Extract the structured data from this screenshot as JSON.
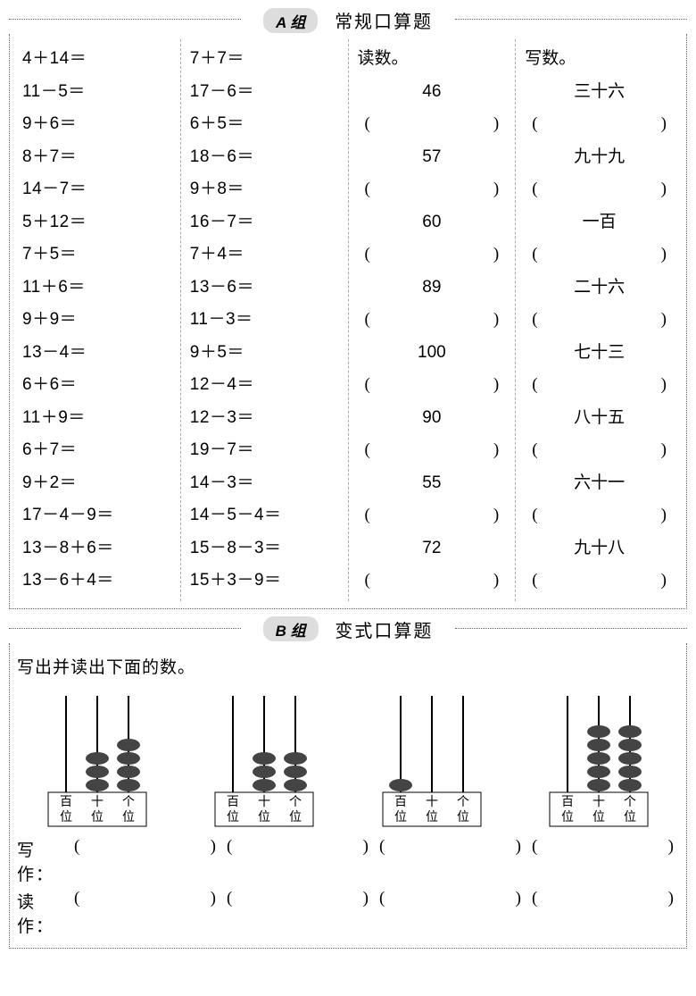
{
  "groupA": {
    "pill": "A 组",
    "title": "常规口算题",
    "col1": [
      "4＋14＝",
      "11－5＝",
      "9＋6＝",
      "8＋7＝",
      "14－7＝",
      "5＋12＝",
      "7＋5＝",
      "11＋6＝",
      "9＋9＝",
      "13－4＝",
      "6＋6＝",
      "11＋9＝",
      "6＋7＝",
      "9＋2＝",
      "17－4－9＝",
      "13－8＋6＝",
      "13－6＋4＝"
    ],
    "col2": [
      "7＋7＝",
      "17－6＝",
      "6＋5＝",
      "18－6＝",
      "9＋8＝",
      "16－7＝",
      "7＋4＝",
      "13－6＝",
      "11－3＝",
      "9＋5＝",
      "12－4＝",
      "12－3＝",
      "19－7＝",
      "14－3＝",
      "14－5－4＝",
      "15－8－3＝",
      "15＋3－9＝"
    ],
    "readHeader": "读数。",
    "readItems": [
      "46",
      "57",
      "60",
      "89",
      "100",
      "90",
      "55",
      "72"
    ],
    "writeHeader": "写数。",
    "writeItems": [
      "三十六",
      "九十九",
      "一百",
      "二十六",
      "七十三",
      "八十五",
      "六十一",
      "九十八"
    ],
    "paren_l": "(",
    "paren_r": ")"
  },
  "groupB": {
    "pill": "B 组",
    "title": "变式口算题",
    "instruction": "写出并读出下面的数。",
    "placeLabels": [
      "百",
      "十",
      "个"
    ],
    "placeSub": "位",
    "abaci": [
      {
        "beads": [
          0,
          3,
          4
        ]
      },
      {
        "beads": [
          0,
          3,
          3
        ]
      },
      {
        "beads": [
          1,
          0,
          0
        ]
      },
      {
        "beads": [
          0,
          5,
          5
        ]
      }
    ],
    "writeLabel": "写作：",
    "readLabel": "读作：",
    "paren_l": "(",
    "paren_r": ")",
    "bead_fill": "#444444",
    "rod_color": "#000000",
    "frame_color": "#000000"
  }
}
